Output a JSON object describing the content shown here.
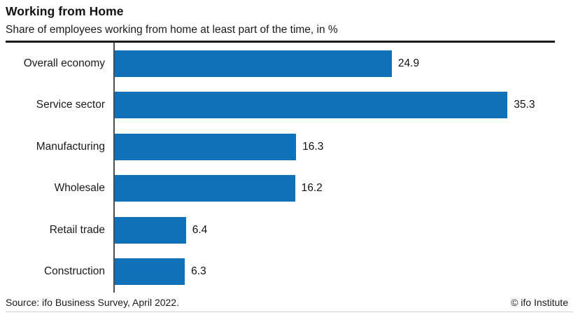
{
  "header": {
    "title": "Working from Home",
    "subtitle": "Share of employees working from home at least part of the time, in %"
  },
  "chart_data": {
    "type": "bar",
    "orientation": "horizontal",
    "title": "Working from Home",
    "subtitle": "Share of employees working from home at least part of the time, in %",
    "categories": [
      "Overall economy",
      "Service sector",
      "Manufacturing",
      "Wholesale",
      "Retail trade",
      "Construction"
    ],
    "values": [
      24.9,
      35.3,
      16.3,
      16.2,
      6.4,
      6.3
    ],
    "unit": "%",
    "xlim": [
      0,
      40
    ],
    "grid": false,
    "legend": false,
    "data_labels": true,
    "bar_color": "#0f72b8"
  },
  "colors": {
    "bar": "#0f72b8",
    "axis_line": "#4d4d4d",
    "header_rule": "#1a1a1a",
    "footer_rule": "#cfcfcf",
    "text": "#1a1a1a"
  },
  "footer": {
    "source": "Source: ifo Business Survey, April 2022.",
    "copyright": "© ifo Institute"
  }
}
